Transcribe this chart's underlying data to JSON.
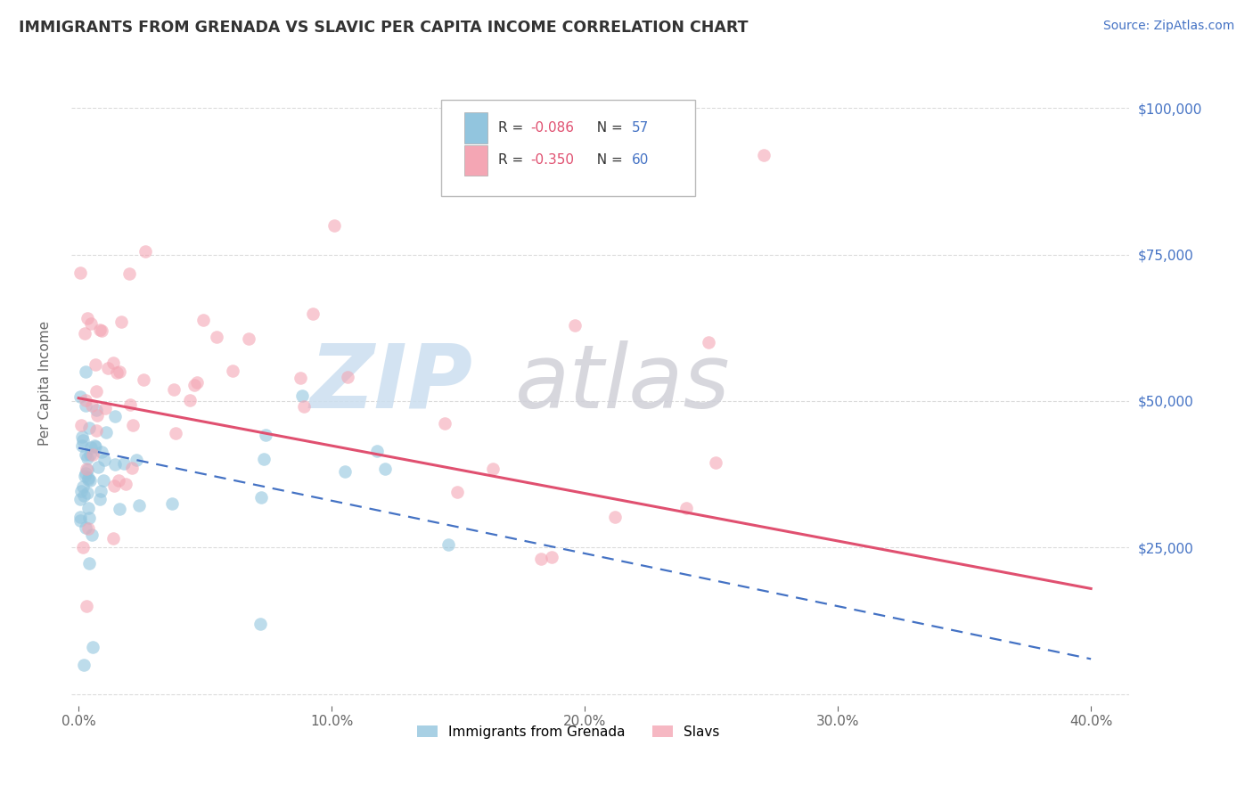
{
  "title": "IMMIGRANTS FROM GRENADA VS SLAVIC PER CAPITA INCOME CORRELATION CHART",
  "source": "Source: ZipAtlas.com",
  "ylabel": "Per Capita Income",
  "series1_name": "Immigrants from Grenada",
  "series1_color": "#92c5de",
  "series2_name": "Slavs",
  "series2_color": "#f4a6b4",
  "line1_color": "#4472c4",
  "line2_color": "#e05070",
  "r1": "-0.086",
  "n1": "57",
  "r2": "-0.350",
  "n2": "60",
  "r_color": "#e05070",
  "n_color": "#4472c4",
  "background_color": "#ffffff",
  "grid_color": "#cccccc",
  "watermark_zip_color": "#ccdff0",
  "watermark_atlas_color": "#d0d0d8",
  "title_color": "#333333",
  "source_color": "#4472c4",
  "ylabel_color": "#666666",
  "ytick_color": "#4472c4",
  "xtick_color": "#666666"
}
